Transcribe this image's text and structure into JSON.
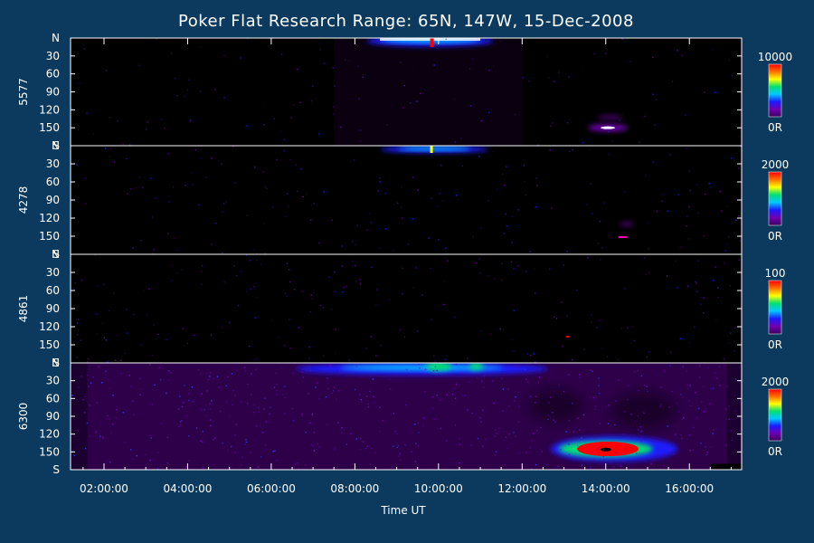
{
  "chart_data": {
    "type": "heatmap",
    "title": "Poker Flat Research Range: 65N, 147W, 15-Dec-2008",
    "xlabel": "Time UT",
    "x_range_hours": [
      1.2,
      17.25
    ],
    "x_ticks": [
      "02:00:00",
      "04:00:00",
      "06:00:00",
      "08:00:00",
      "10:00:00",
      "12:00:00",
      "14:00:00",
      "16:00:00"
    ],
    "x_tick_hours": [
      2,
      4,
      6,
      8,
      10,
      12,
      14,
      16
    ],
    "y_range_deg": [
      0,
      180
    ],
    "y_ticks": [
      "N",
      "30",
      "60",
      "90",
      "120",
      "150",
      "S"
    ],
    "y_tick_deg": [
      0,
      30,
      60,
      90,
      120,
      150,
      180
    ],
    "panels": [
      {
        "ylabel": "5577",
        "colorbar_max": "10000",
        "colorbar_min": "0R"
      },
      {
        "ylabel": "4278",
        "colorbar_max": "2000",
        "colorbar_min": "0R"
      },
      {
        "ylabel": "4861",
        "colorbar_max": "100",
        "colorbar_min": "0R"
      },
      {
        "ylabel": "6300",
        "colorbar_max": "2000",
        "colorbar_min": "0R"
      }
    ]
  },
  "colors": {
    "background": "#0c3a5e",
    "plot_background": "#000000",
    "axis": "#ffffff",
    "text": "#ffffff",
    "colorscale": [
      "#000000",
      "#3a005a",
      "#7000b0",
      "#1a1aff",
      "#00c8ff",
      "#00e070",
      "#ffff00",
      "#ff7000",
      "#ff0000"
    ]
  }
}
